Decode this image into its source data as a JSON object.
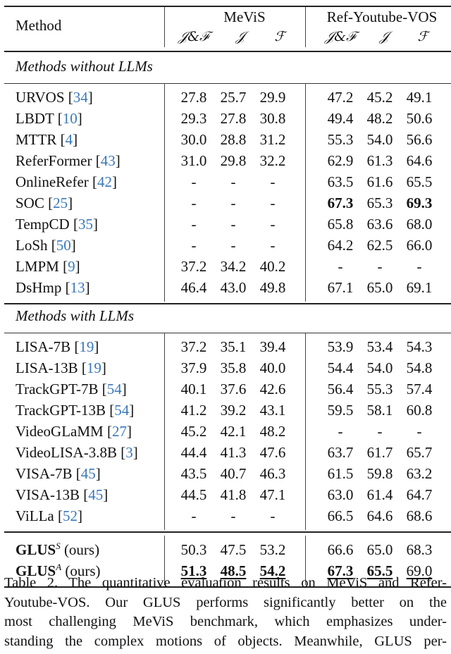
{
  "table": {
    "header": {
      "method_label": "Method",
      "groups": [
        {
          "name": "MeViS",
          "metrics": [
            "𝒥&ℱ",
            "𝒥",
            "ℱ"
          ]
        },
        {
          "name": "Ref-Youtube-VOS",
          "metrics": [
            "𝒥&ℱ",
            "𝒥",
            "ℱ"
          ]
        }
      ]
    },
    "sections": [
      {
        "title": "Methods without LLMs",
        "rows": [
          {
            "method": "URVOS",
            "cite": "[34]",
            "values": [
              "27.8",
              "25.7",
              "29.9",
              "47.2",
              "45.2",
              "49.1"
            ]
          },
          {
            "method": "LBDT",
            "cite": "[10]",
            "values": [
              "29.3",
              "27.8",
              "30.8",
              "49.4",
              "48.2",
              "50.6"
            ]
          },
          {
            "method": "MTTR",
            "cite": "[4]",
            "values": [
              "30.0",
              "28.8",
              "31.2",
              "55.3",
              "54.0",
              "56.6"
            ]
          },
          {
            "method": "ReferFormer",
            "cite": "[43]",
            "values": [
              "31.0",
              "29.8",
              "32.2",
              "62.9",
              "61.3",
              "64.6"
            ]
          },
          {
            "method": "OnlineRefer",
            "cite": "[42]",
            "values": [
              "-",
              "-",
              "-",
              "63.5",
              "61.6",
              "65.5"
            ]
          },
          {
            "method": "SOC",
            "cite": "[25]",
            "values": [
              "-",
              "-",
              "-",
              "67.3",
              "65.3",
              "69.3"
            ],
            "bold": [
              3,
              5
            ]
          },
          {
            "method": "TempCD",
            "cite": "[35]",
            "values": [
              "-",
              "-",
              "-",
              "65.8",
              "63.6",
              "68.0"
            ]
          },
          {
            "method": "LoSh",
            "cite": "[50]",
            "values": [
              "-",
              "-",
              "-",
              "64.2",
              "62.5",
              "66.0"
            ]
          },
          {
            "method": "LMPM",
            "cite": "[9]",
            "values": [
              "37.2",
              "34.2",
              "40.2",
              "-",
              "-",
              "-"
            ]
          },
          {
            "method": "DsHmp",
            "cite": "[13]",
            "values": [
              "46.4",
              "43.0",
              "49.8",
              "67.1",
              "65.0",
              "69.1"
            ]
          }
        ]
      },
      {
        "title": "Methods with LLMs",
        "rows": [
          {
            "method": "LISA-7B",
            "cite": "[19]",
            "values": [
              "37.2",
              "35.1",
              "39.4",
              "53.9",
              "53.4",
              "54.3"
            ]
          },
          {
            "method": "LISA-13B",
            "cite": "[19]",
            "values": [
              "37.9",
              "35.8",
              "40.0",
              "54.4",
              "54.0",
              "54.8"
            ]
          },
          {
            "method": "TrackGPT-7B",
            "cite": "[54]",
            "values": [
              "40.1",
              "37.6",
              "42.6",
              "56.4",
              "55.3",
              "57.4"
            ]
          },
          {
            "method": "TrackGPT-13B",
            "cite": "[54]",
            "values": [
              "41.2",
              "39.2",
              "43.1",
              "59.5",
              "58.1",
              "60.8"
            ]
          },
          {
            "method": "VideoGLaMM",
            "cite": "[27]",
            "values": [
              "45.2",
              "42.1",
              "48.2",
              "-",
              "-",
              "-"
            ]
          },
          {
            "method": "VideoLISA-3.8B",
            "cite": "[3]",
            "values": [
              "44.4",
              "41.3",
              "47.6",
              "63.7",
              "61.7",
              "65.7"
            ]
          },
          {
            "method": "VISA-7B",
            "cite": "[45]",
            "values": [
              "43.5",
              "40.7",
              "46.3",
              "61.5",
              "59.8",
              "63.2"
            ]
          },
          {
            "method": "VISA-13B",
            "cite": "[45]",
            "values": [
              "44.5",
              "41.8",
              "47.1",
              "63.0",
              "61.4",
              "64.7"
            ]
          },
          {
            "method": "ViLLa",
            "cite": "[52]",
            "values": [
              "-",
              "-",
              "-",
              "66.5",
              "64.6",
              "68.6"
            ]
          }
        ]
      },
      {
        "title": "",
        "rows": [
          {
            "method": "GLUS",
            "sup": "S",
            "suffix": "(ours)",
            "values": [
              "50.3",
              "47.5",
              "53.2",
              "66.6",
              "65.0",
              "68.3"
            ]
          },
          {
            "method": "GLUS",
            "sup": "A",
            "suffix": "(ours)",
            "values": [
              "51.3",
              "48.5",
              "54.2",
              "67.3",
              "65.5",
              "69.0"
            ],
            "bold": [
              0,
              1,
              2,
              3,
              4
            ],
            "underline": [
              0,
              1,
              2,
              3,
              4,
              5
            ]
          }
        ]
      }
    ]
  },
  "caption": "Table 2. The quantitative evaluation results on MeViS and Refer-Youtube-VOS. Our GLUS performs significantly better on the most challenging MeViS benchmark, which emphasizes understanding the complex motions of objects. Meanwhile, GLUS per-",
  "caption_lines": [
    "Table 2. The quantitative evaluation results on MeViS and Refer-",
    "Youtube-VOS. Our GLUS performs significantly better on the",
    "most challenging MeViS benchmark, which emphasizes under-",
    "standing the complex motions of objects. Meanwhile, GLUS per-"
  ],
  "colors": {
    "citation": "#3a78b8",
    "text": "#111111"
  }
}
